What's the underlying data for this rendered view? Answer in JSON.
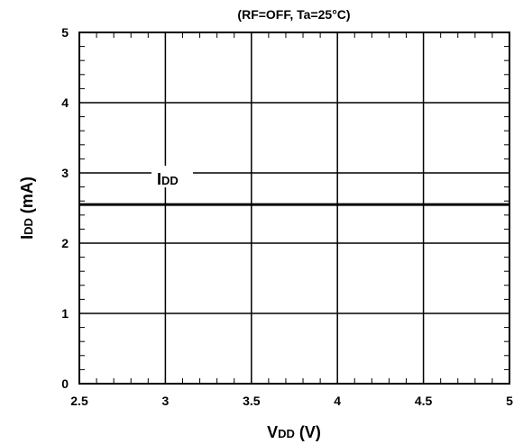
{
  "chart_data": {
    "type": "line",
    "title": "(RF=OFF, Ta=25°C)",
    "xlabel": {
      "main": "V",
      "sub": "DD",
      "unit": " (V)"
    },
    "ylabel": {
      "main": "I",
      "sub": "DD",
      "unit": " (mA)"
    },
    "xlim": [
      2.5,
      5
    ],
    "ylim": [
      0,
      5
    ],
    "x_ticks": [
      "2.5",
      "3",
      "3.5",
      "4",
      "4.5",
      "5"
    ],
    "y_ticks": [
      "0",
      "1",
      "2",
      "3",
      "4",
      "5"
    ],
    "x_minor_step": 0.1,
    "y_minor_step": 0.2,
    "grid": true,
    "series": [
      {
        "name": {
          "main": "I",
          "sub": "DD"
        },
        "x": [
          2.5,
          3,
          3.5,
          4,
          4.5,
          5
        ],
        "y": [
          2.55,
          2.55,
          2.55,
          2.55,
          2.55,
          2.55
        ],
        "color": "#000000"
      }
    ]
  }
}
